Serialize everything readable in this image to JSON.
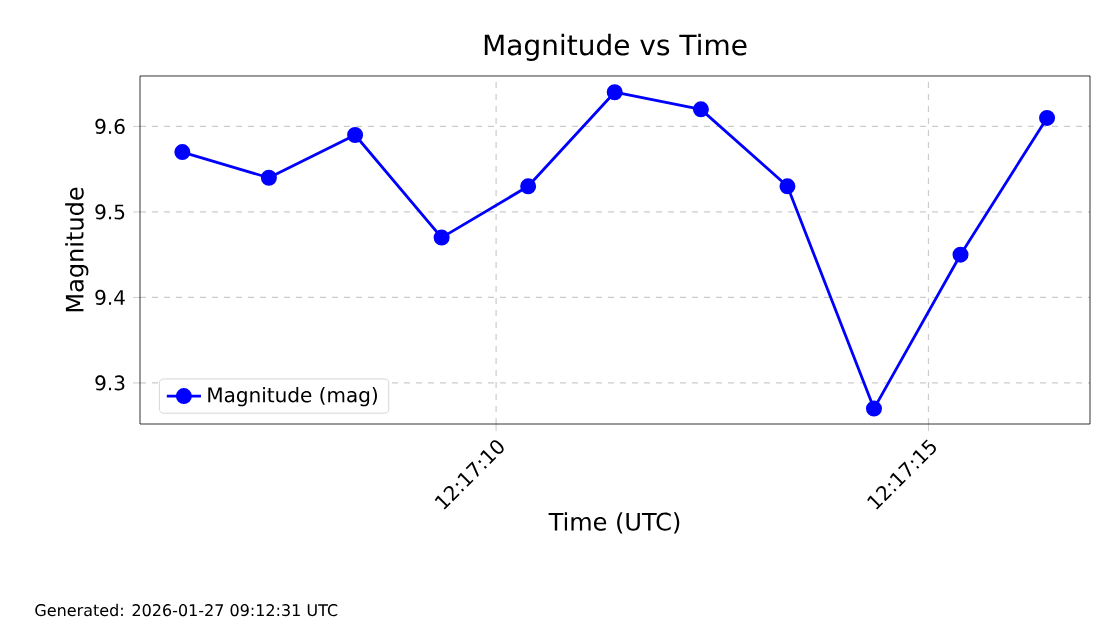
{
  "chart_data": {
    "type": "line",
    "title": "Magnitude vs Time",
    "xlabel": "Time (UTC)",
    "ylabel": "Magnitude",
    "x": [
      12.285103,
      12.285381,
      12.285658,
      12.285936,
      12.286214,
      12.286492,
      12.286769,
      12.287047,
      12.287325,
      12.287603,
      12.287881
    ],
    "series": [
      {
        "name": "Magnitude (mag)",
        "color": "#0000ff",
        "values": [
          9.57,
          9.54,
          9.59,
          9.47,
          9.53,
          9.64,
          9.62,
          9.53,
          9.27,
          9.45,
          9.61
        ]
      }
    ],
    "xlim": [
      12.284967,
      12.288019
    ],
    "xticks": [
      {
        "value": 12.286111,
        "label": "12:17:10"
      },
      {
        "value": 12.2875,
        "label": "12:17:15"
      }
    ],
    "ylim": [
      9.252,
      9.659
    ],
    "yticks": [
      9.3,
      9.4,
      9.5,
      9.6
    ],
    "grid": true,
    "legend": "bottom left",
    "marker": "circle",
    "line_style": "solid",
    "annotations": [
      "Generated: 2026-01-27 09:12:31 UTC"
    ]
  }
}
